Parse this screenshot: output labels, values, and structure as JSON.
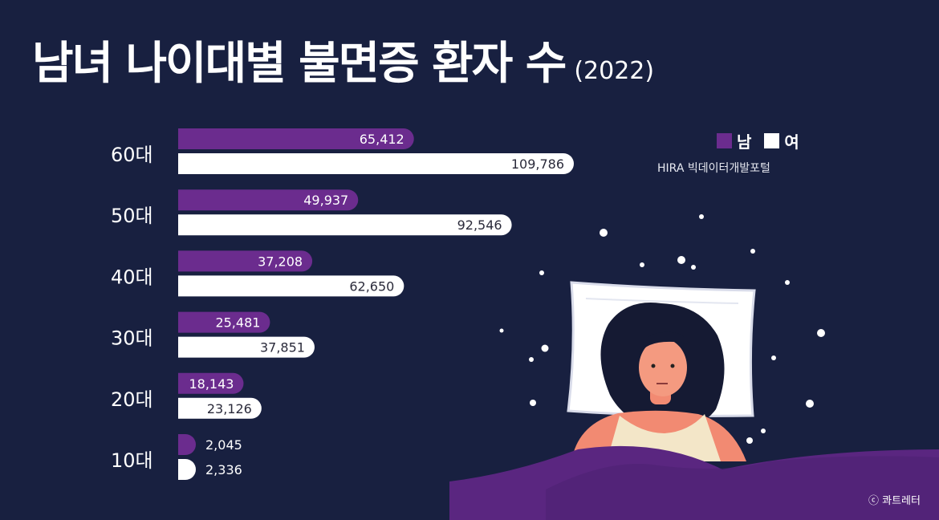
{
  "title": {
    "main": "남녀 나이대별 불면증 환자 수",
    "year": "(2022)"
  },
  "legend": {
    "male": "남",
    "female": "여"
  },
  "source": "HIRA 빅데이터개발포털",
  "credit": "ⓒ 콰트레터",
  "colors": {
    "background": "#182040",
    "male": "#6b2c8e",
    "female": "#ffffff",
    "wave": "#5a2680"
  },
  "chart_data": {
    "type": "bar",
    "orientation": "horizontal",
    "categories": [
      "60대",
      "50대",
      "40대",
      "30대",
      "20대",
      "10대"
    ],
    "series": [
      {
        "name": "남",
        "values": [
          65412,
          49937,
          37208,
          25481,
          18143,
          2045
        ],
        "labels": [
          "65,412",
          "49,937",
          "37,208",
          "25,481",
          "18,143",
          "2,045"
        ]
      },
      {
        "name": "여",
        "values": [
          109786,
          92546,
          62650,
          37851,
          23126,
          2336
        ],
        "labels": [
          "109,786",
          "92,546",
          "62,650",
          "37,851",
          "23,126",
          "2,336"
        ]
      }
    ]
  }
}
